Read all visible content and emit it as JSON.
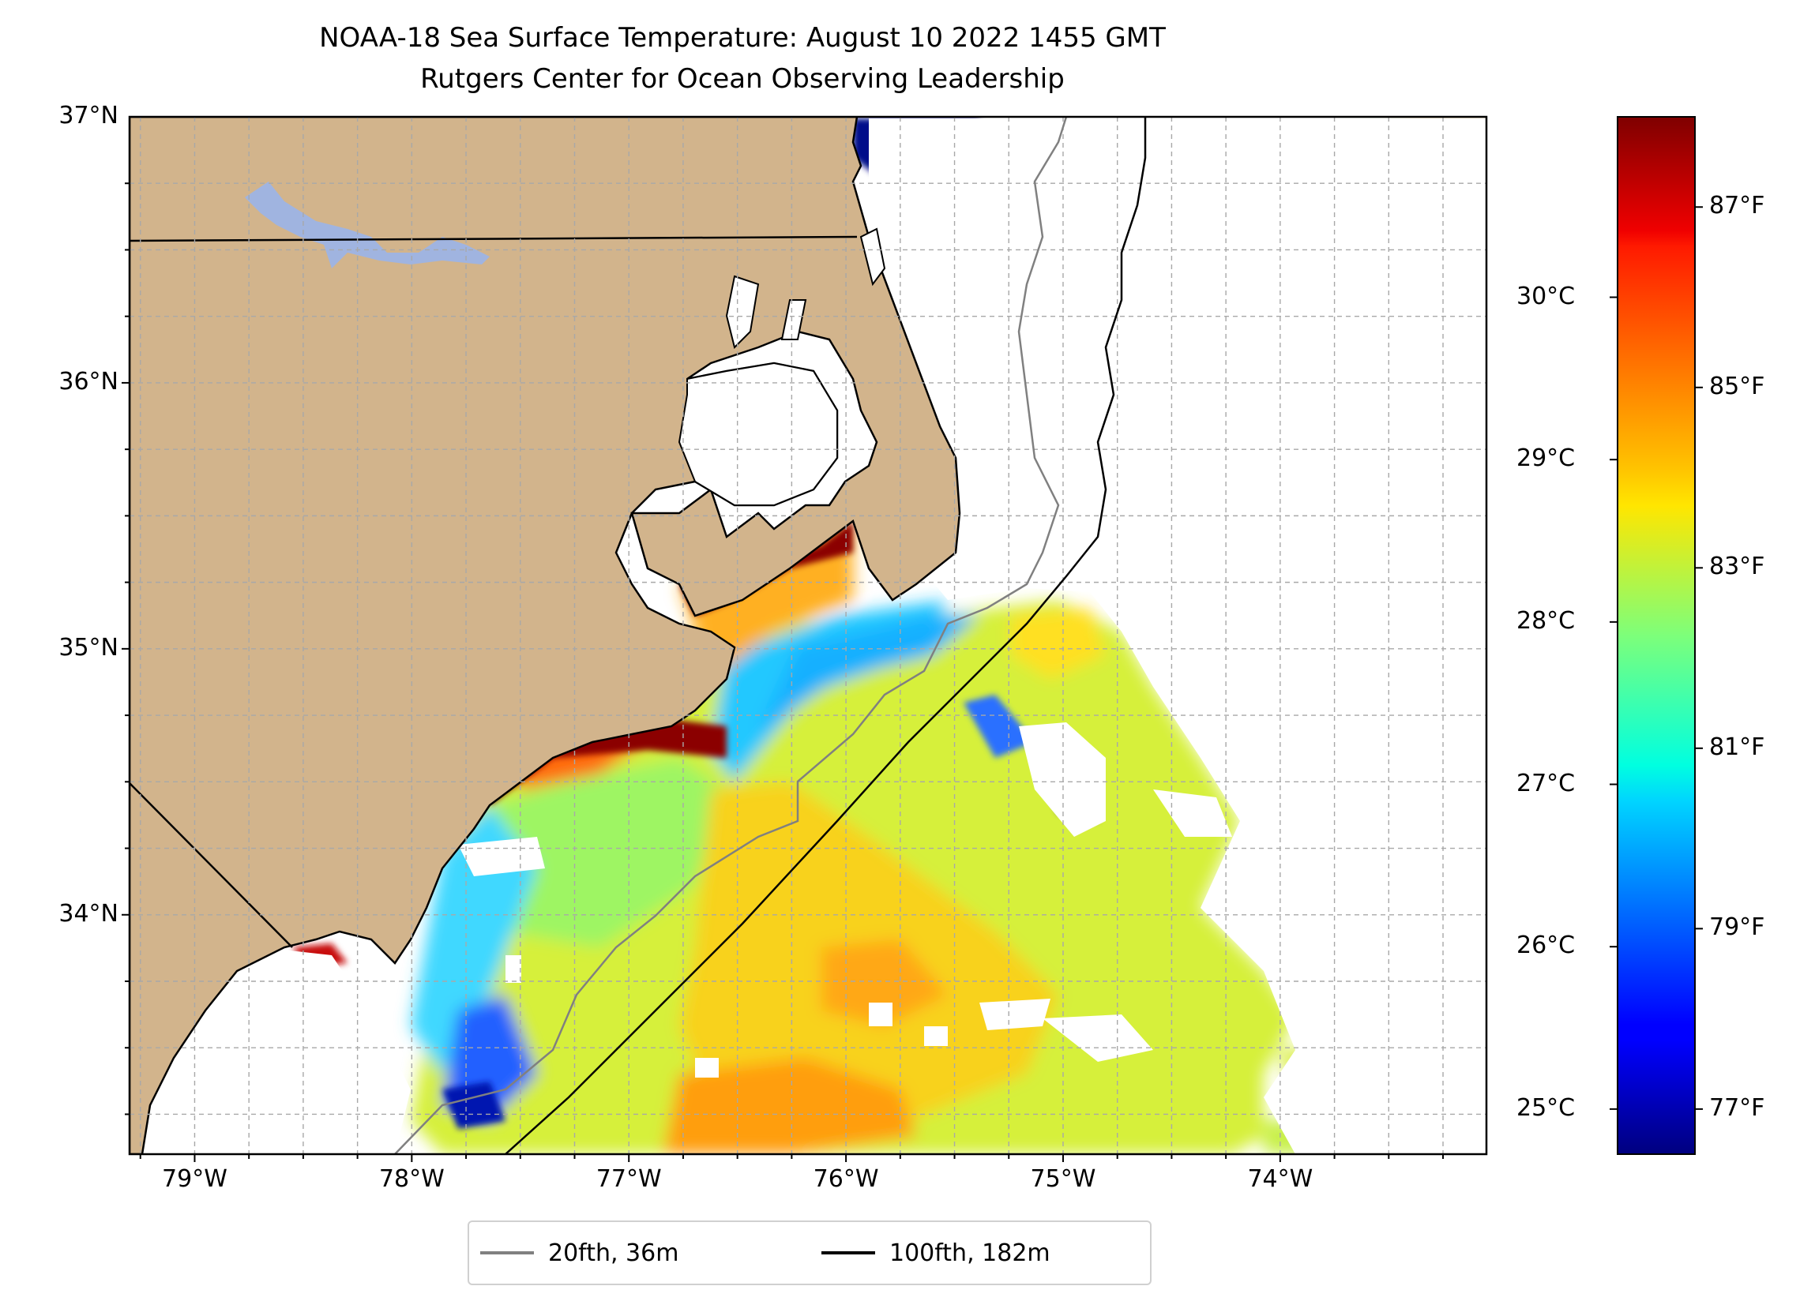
{
  "title": {
    "line1": "NOAA-18 Sea Surface Temperature: August 10 2022 1455 GMT",
    "line2": "Rutgers Center for Ocean Observing Leadership"
  },
  "map": {
    "lon_range": [
      -79.3,
      -73.05
    ],
    "lat_range": [
      33.1,
      37.0
    ],
    "land_color": "#d2b48c",
    "lake_color": "#a0b4e0",
    "grid": true,
    "y_ticks": [
      {
        "value": 37,
        "label": "37°N"
      },
      {
        "value": 36,
        "label": "36°N"
      },
      {
        "value": 35,
        "label": "35°N"
      },
      {
        "value": 34,
        "label": "34°N"
      }
    ],
    "x_ticks": [
      {
        "value": -79,
        "label": "79°W"
      },
      {
        "value": -78,
        "label": "78°W"
      },
      {
        "value": -77,
        "label": "77°W"
      },
      {
        "value": -76,
        "label": "76°W"
      },
      {
        "value": -75,
        "label": "75°W"
      },
      {
        "value": -74,
        "label": "74°W"
      }
    ]
  },
  "colorbar": {
    "colormap": "jet",
    "celsius_ticks": [
      {
        "value": 25,
        "label": "25°C"
      },
      {
        "value": 26,
        "label": "26°C"
      },
      {
        "value": 27,
        "label": "27°C"
      },
      {
        "value": 28,
        "label": "28°C"
      },
      {
        "value": 29,
        "label": "29°C"
      },
      {
        "value": 30,
        "label": "30°C"
      }
    ],
    "fahrenheit_ticks": [
      {
        "value": 77,
        "label": "77°F"
      },
      {
        "value": 79,
        "label": "79°F"
      },
      {
        "value": 81,
        "label": "81°F"
      },
      {
        "value": 83,
        "label": "83°F"
      },
      {
        "value": 85,
        "label": "85°F"
      },
      {
        "value": 87,
        "label": "87°F"
      }
    ],
    "range_f": [
      76.5,
      88.0
    ]
  },
  "legend": {
    "placement": "bottom-center",
    "items": [
      {
        "label": "20fth, 36m",
        "color": "#808080"
      },
      {
        "label": "100fth, 182m",
        "color": "#000000"
      }
    ]
  },
  "chart_data": {
    "type": "heatmap",
    "title": "NOAA-18 Sea Surface Temperature: August 10 2022 1455 GMT",
    "subtitle": "Rutgers Center for Ocean Observing Leadership",
    "xlabel": "",
    "ylabel": "",
    "xlim": [
      -79.3,
      -73.05
    ],
    "ylim": [
      33.1,
      37.0
    ],
    "units": "°F / °C",
    "isobaths": [
      {
        "name": "20fth, 36m",
        "color": "#808080"
      },
      {
        "name": "100fth, 182m",
        "color": "#000000"
      }
    ]
  }
}
